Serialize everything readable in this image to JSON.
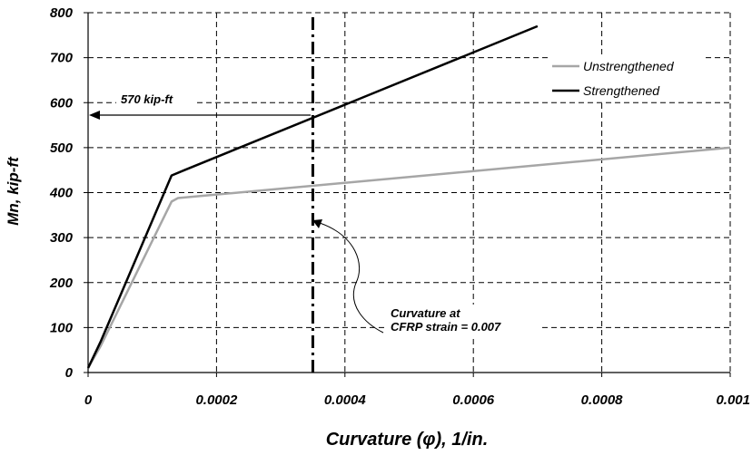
{
  "chart_data": {
    "type": "line",
    "xlabel": "Curvature (φ), 1/in.",
    "ylabel": "Mn, kip-ft",
    "xlim": [
      0,
      0.001
    ],
    "ylim": [
      0,
      800
    ],
    "x_ticks": [
      "0",
      "0.0002",
      "0.0004",
      "0.0006",
      "0.0008",
      "0.001"
    ],
    "x_tick_values": [
      0,
      0.0002,
      0.0004,
      0.0006,
      0.0008,
      0.001
    ],
    "y_ticks": [
      "0",
      "100",
      "200",
      "300",
      "400",
      "500",
      "600",
      "700",
      "800"
    ],
    "y_tick_values": [
      0,
      100,
      200,
      300,
      400,
      500,
      600,
      700,
      800
    ],
    "grid": true,
    "grid_style": "dashed",
    "legend_position": "right",
    "series": [
      {
        "name": "Unstrengthened",
        "color": "#a6a6a6",
        "x": [
          0,
          2e-05,
          0.00013,
          0.00014,
          0.001
        ],
        "y": [
          10,
          60,
          380,
          388,
          500
        ]
      },
      {
        "name": "Strengthened",
        "color": "#000000",
        "x": [
          0,
          2e-05,
          0.00013,
          0.00015,
          0.0007
        ],
        "y": [
          10,
          70,
          438,
          450,
          770
        ]
      }
    ],
    "vertical_line": {
      "x": 0.00035,
      "style": "dash-dot",
      "color": "#000000"
    },
    "annotations": [
      {
        "text": "570 kip-ft",
        "x": 0.00035,
        "y": 570
      },
      {
        "text": "Curvature at",
        "x": 0.00035,
        "y": 330
      },
      {
        "text": "CFRP strain = 0.007",
        "x": 0.00035,
        "y": 330
      }
    ]
  }
}
